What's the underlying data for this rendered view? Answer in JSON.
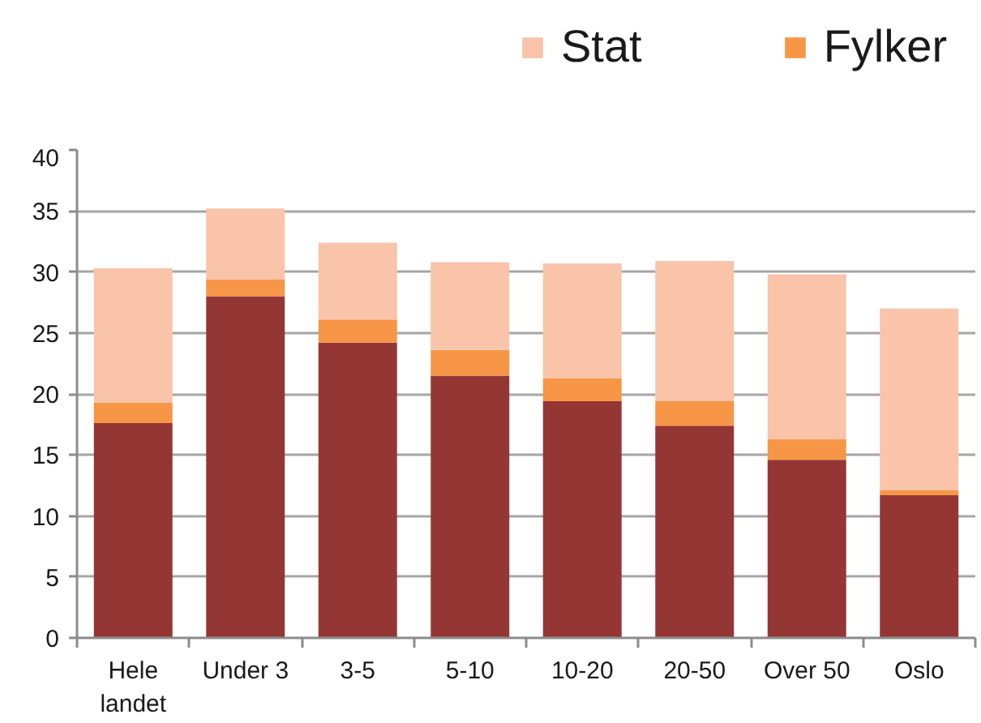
{
  "chart_data": {
    "type": "bar",
    "stacked": true,
    "categories": [
      "Hele landet",
      "Under 3",
      "3-5",
      "5-10",
      "10-20",
      "20-50",
      "Over 50",
      "Oslo"
    ],
    "series": [
      {
        "color": "#943634",
        "values": [
          17.6,
          28.0,
          24.2,
          21.5,
          19.4,
          17.4,
          14.6,
          11.7
        ]
      },
      {
        "name": "Fylker",
        "color": "#f79646",
        "values": [
          1.7,
          1.4,
          1.9,
          2.1,
          1.9,
          2.0,
          1.7,
          0.4
        ]
      },
      {
        "name": "Stat",
        "color": "#f9c4aa",
        "values": [
          11.0,
          5.8,
          6.3,
          7.2,
          9.4,
          11.5,
          13.5,
          14.9
        ]
      }
    ],
    "ylim": [
      0,
      40
    ],
    "yticks": [
      0,
      5,
      10,
      15,
      20,
      25,
      30,
      35,
      40
    ],
    "grid": "y",
    "legend": "top right"
  }
}
